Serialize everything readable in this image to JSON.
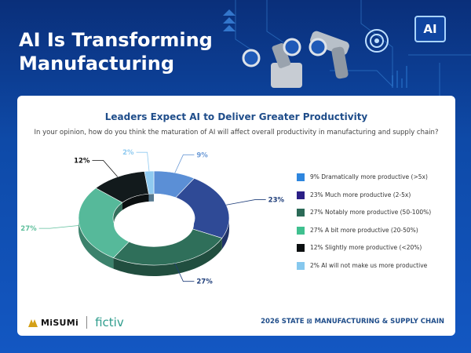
{
  "header": {
    "headline_line1": "AI Is Transforming",
    "headline_line2": "Manufacturing",
    "chip_label": "AI"
  },
  "card": {
    "title": "Leaders Expect AI to Deliver Greater Productivity",
    "subtitle": "In your opinion, how do you think the maturation of AI will affect overall productivity in manufacturing and supply chain?"
  },
  "chart_data": {
    "type": "pie",
    "style": "donut-3d",
    "title": "Leaders Expect AI to Deliver Greater Productivity",
    "legend_position": "right",
    "slices": [
      {
        "label": "Dramatically more productive (>5x)",
        "value": 9,
        "value_label": "9%",
        "legend": "9% Dramatically more productive (>5x)",
        "color": "#5b8fd6"
      },
      {
        "label": "Much more productive (2-5x)",
        "value": 23,
        "value_label": "23%",
        "legend": "23% Much more productive (2-5x)",
        "color": "#2f4a96"
      },
      {
        "label": "Notably more productive (50-100%)",
        "value": 27,
        "value_label": "27%",
        "legend": "27% Notably more productive (50-100%)",
        "color": "#2f6f5a"
      },
      {
        "label": "A bit more productive (20-50%)",
        "value": 27,
        "value_label": "27%",
        "legend": "27% A bit more productive (20-50%)",
        "color": "#56b99a"
      },
      {
        "label": "Slightly more productive (<20%)",
        "value": 12,
        "value_label": "12%",
        "legend": "12% Slightly more productive (<20%)",
        "color": "#121a1c"
      },
      {
        "label": "AI will not make us more productive",
        "value": 2,
        "value_label": "2%",
        "legend": "2% AI will not make us more productive",
        "color": "#8fcaf0"
      }
    ],
    "legend_swatch_colors": [
      "#2e86de",
      "#2b1f86",
      "#2b6a57",
      "#3fc08f",
      "#0b0f10",
      "#86c8ee"
    ],
    "label_colors": [
      "#6b9ad6",
      "#1f3e7a",
      "#1f3e7a",
      "#5fbf9c",
      "#111111",
      "#8fcaf0"
    ]
  },
  "footer": {
    "brand_left": "MiSUMi",
    "brand_right": "fictiv",
    "report": "2026 STATE ⊠ MANUFACTURING & SUPPLY CHAIN"
  }
}
